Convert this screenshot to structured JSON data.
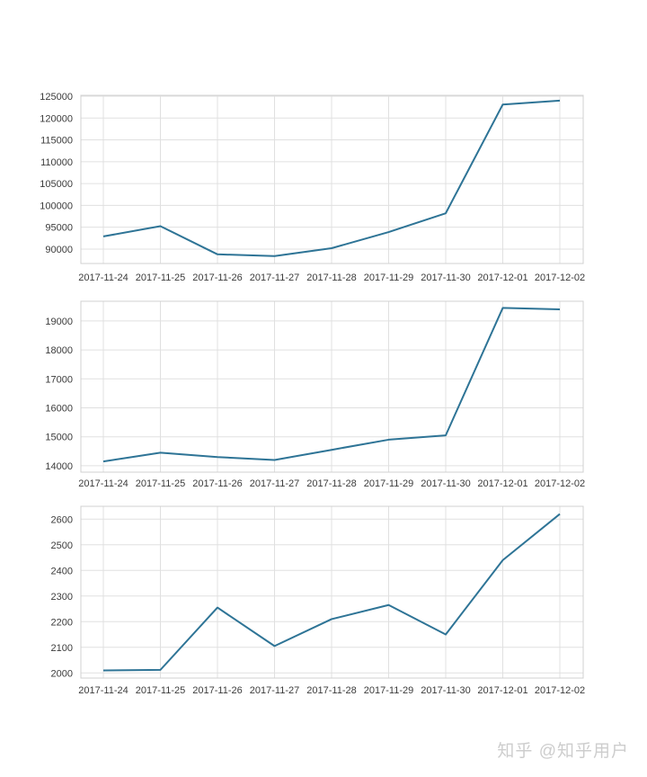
{
  "watermark": {
    "text": "知乎 @知乎用户",
    "color": "#cdcdcd"
  },
  "chart_data": [
    {
      "type": "line",
      "x": [
        "2017-11-24",
        "2017-11-25",
        "2017-11-26",
        "2017-11-27",
        "2017-11-28",
        "2017-11-29",
        "2017-11-30",
        "2017-12-01",
        "2017-12-02"
      ],
      "values": [
        92900,
        95250,
        88800,
        88400,
        90200,
        93900,
        98200,
        123100,
        124000
      ],
      "ylim": [
        86700,
        125200
      ],
      "yticks": [
        90000,
        95000,
        100000,
        105000,
        110000,
        115000,
        120000,
        125000
      ],
      "title": "",
      "xlabel": "",
      "ylabel": "",
      "grid": true,
      "legend": "none",
      "line_color": "#2e7496"
    },
    {
      "type": "line",
      "x": [
        "2017-11-24",
        "2017-11-25",
        "2017-11-26",
        "2017-11-27",
        "2017-11-28",
        "2017-11-29",
        "2017-11-30",
        "2017-12-01",
        "2017-12-02"
      ],
      "values": [
        14150,
        14450,
        14300,
        14200,
        14550,
        14900,
        15050,
        19450,
        19400
      ],
      "ylim": [
        13780,
        19680
      ],
      "yticks": [
        14000,
        15000,
        16000,
        17000,
        18000,
        19000
      ],
      "title": "",
      "xlabel": "",
      "ylabel": "",
      "grid": true,
      "legend": "none",
      "line_color": "#2e7496"
    },
    {
      "type": "line",
      "x": [
        "2017-11-24",
        "2017-11-25",
        "2017-11-26",
        "2017-11-27",
        "2017-11-28",
        "2017-11-29",
        "2017-11-30",
        "2017-12-01",
        "2017-12-02"
      ],
      "values": [
        2010,
        2012,
        2255,
        2105,
        2210,
        2265,
        2150,
        2440,
        2620
      ],
      "ylim": [
        1980,
        2650
      ],
      "yticks": [
        2000,
        2100,
        2200,
        2300,
        2400,
        2500,
        2600
      ],
      "title": "",
      "xlabel": "",
      "ylabel": "",
      "grid": true,
      "legend": "none",
      "line_color": "#2e7496"
    }
  ],
  "style": {
    "grid_color": "#e0e0e0",
    "border_color": "#d0d0d0",
    "tick_color": "#3b3b3b"
  }
}
